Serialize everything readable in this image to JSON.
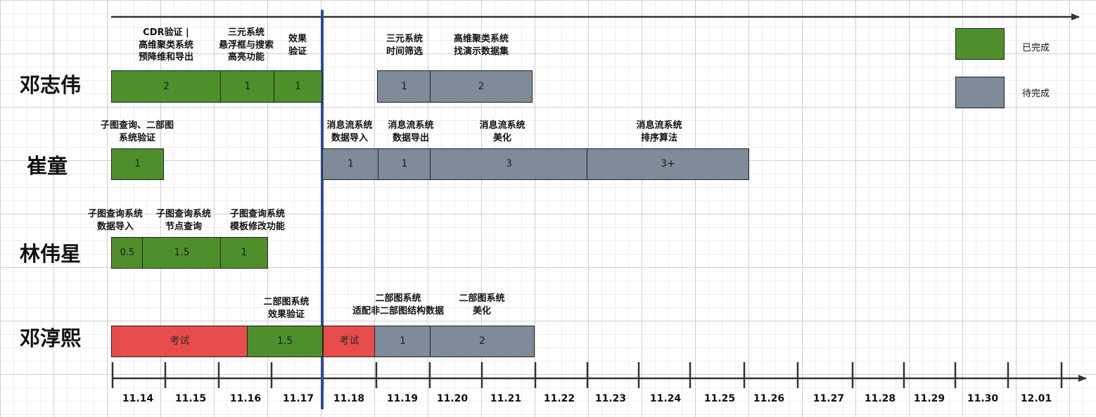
{
  "colors": {
    "done": "#4f8f2b",
    "todo": "#7e8b98",
    "exam": "#e84c4c",
    "current_line": "#2e4a9e"
  },
  "dates": [
    "11.14",
    "11.15",
    "11.16",
    "11.17",
    "11.18",
    "11.19",
    "11.20",
    "11.21",
    "11.22",
    "11.23",
    "11.24",
    "11.25",
    "11.26",
    "11.27",
    "11.28",
    "11.29",
    "11.30",
    "12.01"
  ],
  "legend": [
    {
      "label": "已完成",
      "status": "done"
    },
    {
      "label": "待完成",
      "status": "todo"
    }
  ],
  "people": [
    {
      "name": "邓志伟",
      "bars": [
        {
          "value": "2",
          "status": "done"
        },
        {
          "value": "1",
          "status": "done"
        },
        {
          "value": "1",
          "status": "done"
        },
        {
          "value": "1",
          "status": "todo"
        },
        {
          "value": "2",
          "status": "todo"
        }
      ],
      "labels": [
        "CDR验证 |\n高维聚类系统\n预降维和导出",
        "三元系统\n悬浮框与搜索\n高亮功能",
        "效果\n验证",
        "三元系统\n时间筛选",
        "高维聚类系统\n找演示数据集"
      ]
    },
    {
      "name": "崔童",
      "bars": [
        {
          "value": "1",
          "status": "done"
        },
        {
          "value": "1",
          "status": "todo"
        },
        {
          "value": "1",
          "status": "todo"
        },
        {
          "value": "3",
          "status": "todo"
        },
        {
          "value": "3+",
          "status": "todo"
        }
      ],
      "labels": [
        "子图查询、二部图\n系统验证",
        "消息流系统\n数据导入",
        "消息流系统\n数据导出",
        "消息流系统\n美化",
        "消息流系统\n排序算法"
      ]
    },
    {
      "name": "林伟星",
      "bars": [
        {
          "value": "0.5",
          "status": "done"
        },
        {
          "value": "1.5",
          "status": "done"
        },
        {
          "value": "1",
          "status": "done"
        }
      ],
      "labels": [
        "子图查询系统\n数据导入",
        "子图查询系统\n节点查询",
        "子图查询系统\n模板修改功能"
      ]
    },
    {
      "name": "邓淳熙",
      "bars": [
        {
          "value": "考试",
          "status": "exam"
        },
        {
          "value": "1.5",
          "status": "done"
        },
        {
          "value": "考试",
          "status": "exam"
        },
        {
          "value": "1",
          "status": "todo"
        },
        {
          "value": "2",
          "status": "todo"
        }
      ],
      "labels": [
        "二部图系统\n效果验证",
        "二部图系统\n适配非二部图结构数据",
        "二部图系统\n美化"
      ]
    }
  ]
}
